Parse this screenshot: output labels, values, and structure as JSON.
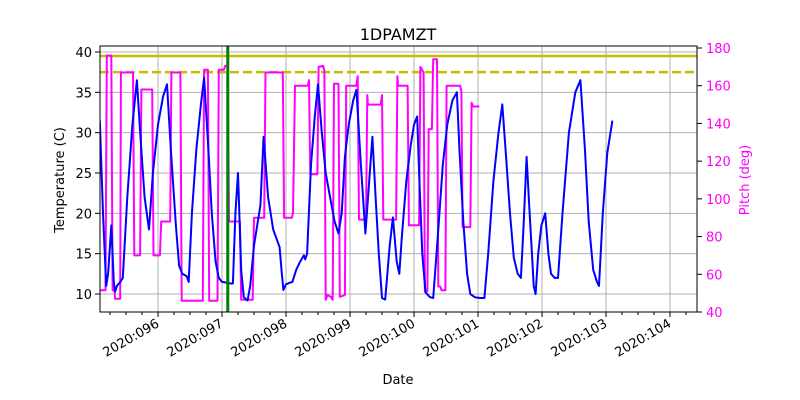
{
  "chart_data": {
    "type": "line",
    "title": "1DPAMZT",
    "xlabel": "Date",
    "ylabel": "Temperature (C)",
    "y2label": "Pitch (deg)",
    "xlim": [
      95.09,
      104.42
    ],
    "ylim": [
      7.8,
      40.5
    ],
    "y2lim": [
      40,
      180
    ],
    "grid": true,
    "x_ticks": [
      {
        "value": 96,
        "label": "2020:096"
      },
      {
        "value": 97,
        "label": "2020:097"
      },
      {
        "value": 98,
        "label": "2020:098"
      },
      {
        "value": 99,
        "label": "2020:099"
      },
      {
        "value": 100,
        "label": "2020:100"
      },
      {
        "value": 101,
        "label": "2020:101"
      },
      {
        "value": 102,
        "label": "2020:102"
      },
      {
        "value": 103,
        "label": "2020:103"
      },
      {
        "value": 104,
        "label": "2020:104"
      }
    ],
    "y_ticks": [
      10,
      15,
      20,
      25,
      30,
      35,
      40
    ],
    "y2_ticks": [
      40,
      60,
      80,
      100,
      120,
      140,
      160,
      180
    ],
    "colors": {
      "temperature": "#0000ff",
      "pitch": "#ff00ff",
      "limit": "#bfbf00",
      "now_marker": "#008000",
      "grid": "#b0b0b0",
      "axis": "#000000"
    },
    "reference_lines": [
      {
        "name": "planning-limit",
        "y": 39.5,
        "style": "solid",
        "color": "#bfbf00"
      },
      {
        "name": "caution-limit",
        "y": 37.5,
        "style": "dashed",
        "color": "#bfbf00"
      }
    ],
    "vertical_marker": {
      "name": "current-time",
      "x": 97.09,
      "color": "#008000"
    },
    "series": [
      {
        "name": "Temperature",
        "axis": "left",
        "color": "#0000ff",
        "points": [
          [
            95.09,
            31.5
          ],
          [
            95.14,
            20
          ],
          [
            95.19,
            11
          ],
          [
            95.22,
            12.5
          ],
          [
            95.27,
            18.5
          ],
          [
            95.31,
            11.5
          ],
          [
            95.33,
            10.3
          ],
          [
            95.36,
            11
          ],
          [
            95.41,
            11.5
          ],
          [
            95.45,
            12
          ],
          [
            95.52,
            22
          ],
          [
            95.6,
            31
          ],
          [
            95.67,
            36.5
          ],
          [
            95.73,
            29
          ],
          [
            95.79,
            22
          ],
          [
            95.86,
            18
          ],
          [
            95.92,
            25
          ],
          [
            96.0,
            31
          ],
          [
            96.08,
            34.5
          ],
          [
            96.14,
            36
          ],
          [
            96.2,
            28
          ],
          [
            96.28,
            18.5
          ],
          [
            96.33,
            13.5
          ],
          [
            96.38,
            12.5
          ],
          [
            96.45,
            12.2
          ],
          [
            96.48,
            11.5
          ],
          [
            96.53,
            20
          ],
          [
            96.6,
            28
          ],
          [
            96.67,
            33.5
          ],
          [
            96.72,
            36.8
          ],
          [
            96.78,
            29
          ],
          [
            96.84,
            20
          ],
          [
            96.9,
            14
          ],
          [
            96.95,
            12
          ],
          [
            97.0,
            11.5
          ],
          [
            97.08,
            11.4
          ],
          [
            97.13,
            11.3
          ],
          [
            97.17,
            11.3
          ],
          [
            97.21,
            20
          ],
          [
            97.25,
            25
          ],
          [
            97.3,
            13
          ],
          [
            97.34,
            9.6
          ],
          [
            97.4,
            9.2
          ],
          [
            97.44,
            11
          ],
          [
            97.5,
            16
          ],
          [
            97.57,
            19.5
          ],
          [
            97.6,
            21
          ],
          [
            97.65,
            29.5
          ],
          [
            97.72,
            22
          ],
          [
            97.8,
            18
          ],
          [
            97.9,
            15.8
          ],
          [
            97.93,
            13
          ],
          [
            97.96,
            10.5
          ],
          [
            98.0,
            11.2
          ],
          [
            98.06,
            11.4
          ],
          [
            98.1,
            11.5
          ],
          [
            98.16,
            13
          ],
          [
            98.22,
            14
          ],
          [
            98.28,
            14.8
          ],
          [
            98.3,
            14.3
          ],
          [
            98.33,
            15
          ],
          [
            98.39,
            26
          ],
          [
            98.45,
            32
          ],
          [
            98.5,
            36
          ],
          [
            98.56,
            30
          ],
          [
            98.62,
            25
          ],
          [
            98.7,
            21.5
          ],
          [
            98.76,
            19
          ],
          [
            98.82,
            17.5
          ],
          [
            98.87,
            20
          ],
          [
            98.92,
            27
          ],
          [
            98.98,
            31
          ],
          [
            99.05,
            34
          ],
          [
            99.1,
            35.3
          ],
          [
            99.17,
            26
          ],
          [
            99.24,
            17.5
          ],
          [
            99.3,
            24
          ],
          [
            99.35,
            29.5
          ],
          [
            99.4,
            22
          ],
          [
            99.45,
            15
          ],
          [
            99.5,
            9.5
          ],
          [
            99.55,
            9.3
          ],
          [
            99.62,
            16
          ],
          [
            99.67,
            19.5
          ],
          [
            99.73,
            14
          ],
          [
            99.77,
            12.5
          ],
          [
            99.81,
            17
          ],
          [
            99.88,
            24
          ],
          [
            99.95,
            28.5
          ],
          [
            100.0,
            31
          ],
          [
            100.05,
            32
          ],
          [
            100.08,
            25
          ],
          [
            100.13,
            15
          ],
          [
            100.18,
            10.2
          ],
          [
            100.25,
            9.6
          ],
          [
            100.3,
            9.5
          ],
          [
            100.38,
            18
          ],
          [
            100.45,
            26
          ],
          [
            100.52,
            31
          ],
          [
            100.6,
            34
          ],
          [
            100.67,
            35
          ],
          [
            100.71,
            28
          ],
          [
            100.77,
            19
          ],
          [
            100.83,
            12.5
          ],
          [
            100.88,
            10
          ],
          [
            100.95,
            9.6
          ],
          [
            101.03,
            9.5
          ],
          [
            101.1,
            9.5
          ],
          [
            101.16,
            15
          ],
          [
            101.24,
            24
          ],
          [
            101.32,
            30
          ],
          [
            101.38,
            33.5
          ],
          [
            101.43,
            28
          ],
          [
            101.5,
            20
          ],
          [
            101.56,
            14.5
          ],
          [
            101.62,
            12.5
          ],
          [
            101.67,
            12
          ],
          [
            101.71,
            18
          ],
          [
            101.76,
            27
          ],
          [
            101.8,
            21
          ],
          [
            101.85,
            14
          ],
          [
            101.87,
            11
          ],
          [
            101.9,
            10
          ],
          [
            101.94,
            15
          ],
          [
            101.99,
            18.5
          ],
          [
            102.05,
            20
          ],
          [
            102.1,
            15
          ],
          [
            102.14,
            12.5
          ],
          [
            102.2,
            12
          ],
          [
            102.25,
            12
          ],
          [
            102.32,
            20
          ],
          [
            102.42,
            30
          ],
          [
            102.52,
            35
          ],
          [
            102.6,
            36.5
          ],
          [
            102.67,
            28
          ],
          [
            102.73,
            19
          ],
          [
            102.8,
            13
          ],
          [
            102.86,
            11.5
          ],
          [
            102.89,
            11
          ],
          [
            102.95,
            20
          ],
          [
            103.02,
            27.5
          ],
          [
            103.1,
            31.5
          ]
        ]
      },
      {
        "name": "Pitch",
        "axis": "right",
        "color": "#ff00ff",
        "points": [
          [
            95.09,
            51.5
          ],
          [
            95.18,
            51.5
          ],
          [
            95.2,
            176
          ],
          [
            95.27,
            176
          ],
          [
            95.29,
            51.5
          ],
          [
            95.32,
            51.5
          ],
          [
            95.33,
            47
          ],
          [
            95.41,
            47
          ],
          [
            95.42,
            167
          ],
          [
            95.59,
            167
          ],
          [
            95.61,
            167
          ],
          [
            95.63,
            70
          ],
          [
            95.72,
            70
          ],
          [
            95.74,
            158
          ],
          [
            95.89,
            158
          ],
          [
            95.91,
            158
          ],
          [
            95.93,
            70
          ],
          [
            96.03,
            70
          ],
          [
            96.05,
            88
          ],
          [
            96.19,
            88
          ],
          [
            96.21,
            167
          ],
          [
            96.35,
            167
          ],
          [
            96.37,
            46
          ],
          [
            96.7,
            46
          ],
          [
            96.72,
            168.5
          ],
          [
            96.78,
            168.5
          ],
          [
            96.8,
            46
          ],
          [
            96.93,
            46
          ],
          [
            96.95,
            168.5
          ],
          [
            97.03,
            168.5
          ],
          [
            97.05,
            170.5
          ],
          [
            97.09,
            170.5
          ],
          [
            97.11,
            88
          ],
          [
            97.28,
            88
          ],
          [
            97.3,
            46.5
          ],
          [
            97.48,
            46.5
          ],
          [
            97.5,
            90
          ],
          [
            97.66,
            90
          ],
          [
            97.68,
            167
          ],
          [
            97.95,
            167
          ],
          [
            97.97,
            90
          ],
          [
            98.09,
            90
          ],
          [
            98.11,
            92.5
          ],
          [
            98.14,
            160
          ],
          [
            98.34,
            160
          ],
          [
            98.36,
            163
          ],
          [
            98.38,
            113
          ],
          [
            98.49,
            113
          ],
          [
            98.51,
            170
          ],
          [
            98.58,
            170.5
          ],
          [
            98.6,
            168
          ],
          [
            98.62,
            46.5
          ],
          [
            98.65,
            49
          ],
          [
            98.7,
            48
          ],
          [
            98.73,
            46.5
          ],
          [
            98.75,
            161
          ],
          [
            98.82,
            161
          ],
          [
            98.84,
            48
          ],
          [
            98.92,
            49
          ],
          [
            98.94,
            160
          ],
          [
            99.06,
            160
          ],
          [
            99.1,
            160
          ],
          [
            99.12,
            165
          ],
          [
            99.14,
            89
          ],
          [
            99.25,
            89
          ],
          [
            99.27,
            155
          ],
          [
            99.28,
            150
          ],
          [
            99.48,
            150
          ],
          [
            99.5,
            155
          ],
          [
            99.52,
            89
          ],
          [
            99.72,
            89
          ],
          [
            99.74,
            165
          ],
          [
            99.75,
            160
          ],
          [
            99.88,
            160
          ],
          [
            99.9,
            160
          ],
          [
            99.92,
            86
          ],
          [
            100.08,
            86
          ],
          [
            100.1,
            170
          ],
          [
            100.15,
            167
          ],
          [
            100.17,
            51
          ],
          [
            100.21,
            51
          ],
          [
            100.23,
            137
          ],
          [
            100.28,
            137
          ],
          [
            100.3,
            174
          ],
          [
            100.36,
            174
          ],
          [
            100.38,
            53.5
          ],
          [
            100.41,
            53.5
          ],
          [
            100.43,
            51.5
          ],
          [
            100.49,
            51.5
          ],
          [
            100.51,
            160
          ],
          [
            100.72,
            160
          ],
          [
            100.74,
            157
          ],
          [
            100.76,
            85
          ],
          [
            100.88,
            85
          ],
          [
            100.9,
            151
          ],
          [
            100.92,
            149
          ],
          [
            101.02,
            149
          ]
        ]
      }
    ]
  }
}
